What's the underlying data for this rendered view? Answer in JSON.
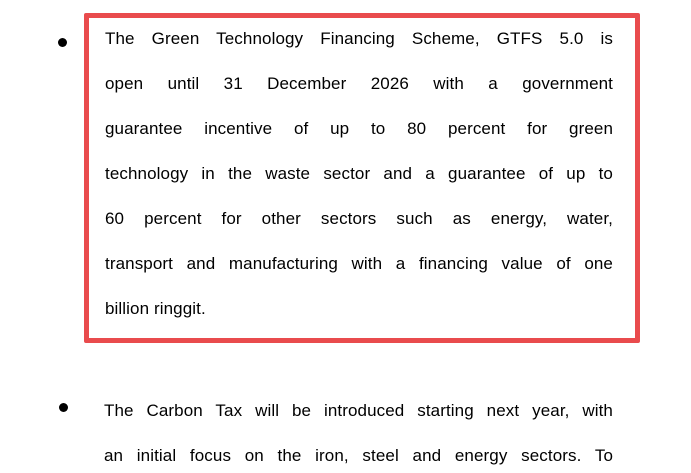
{
  "page": {
    "background_color": "#ffffff",
    "text_color": "#000000"
  },
  "annotation": {
    "type": "highlight-rectangle",
    "border_color": "#e94b4d"
  },
  "bullets": [
    {
      "id": "gtfs",
      "highlighted": true,
      "full_text": "The Green Technology Financing Scheme, GTFS 5.0 is open until 31 December 2026 with a government guarantee incentive of up to 80 percent for green technology in the waste sector and a guarantee of up to 60 percent for other sectors such as energy, water, transport and manufacturing with a financing value of one billion ringgit.",
      "lines": [
        "The Green Technology Financing Scheme, GTFS 5.0 is",
        "open until 31 December 2026 with a government",
        "guarantee incentive of up to 80 percent for green",
        "technology in the waste sector and a guarantee of up to",
        "60 percent for other sectors such as energy, water,",
        "transport and manufacturing with a financing value of one",
        "billion ringgit."
      ]
    },
    {
      "id": "carbon-tax",
      "highlighted": false,
      "full_text": "The Carbon Tax will be introduced starting next year, with an initial focus on the iron, steel and energy sectors. To",
      "lines": [
        "The Carbon Tax will be introduced starting next year, with",
        "an initial focus on the iron, steel and energy sectors. To"
      ]
    }
  ]
}
